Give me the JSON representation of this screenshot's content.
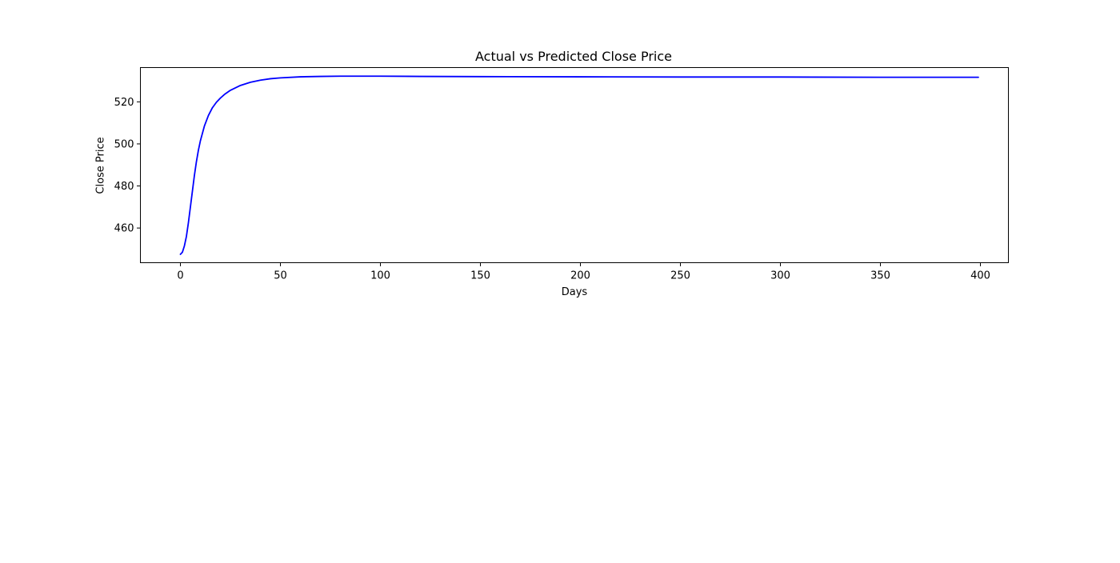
{
  "chart_data": {
    "type": "line",
    "title": "Actual vs Predicted Close Price",
    "xlabel": "Days",
    "ylabel": "Close Price",
    "xlim": [
      -20,
      414
    ],
    "ylim": [
      443.5,
      536.3
    ],
    "xticks": [
      0,
      50,
      100,
      150,
      200,
      250,
      300,
      350,
      400
    ],
    "yticks": [
      460,
      480,
      500,
      520
    ],
    "grid": false,
    "legend": "none",
    "colors": {
      "line": "#0000ff",
      "axes": "#000000",
      "background": "#ffffff"
    },
    "series": [
      {
        "x": [
          0,
          1,
          2,
          3,
          4,
          5,
          6,
          7,
          8,
          9,
          10,
          12,
          14,
          16,
          18,
          20,
          22,
          25,
          30,
          35,
          40,
          45,
          50,
          60,
          70,
          80,
          90,
          100,
          120,
          150,
          200,
          250,
          300,
          350,
          399
        ],
        "y": [
          447.5,
          448.5,
          451.5,
          456.0,
          462.5,
          470.0,
          477.5,
          485.0,
          491.5,
          497.0,
          501.5,
          508.5,
          513.5,
          517.2,
          519.8,
          521.8,
          523.5,
          525.5,
          527.8,
          529.3,
          530.3,
          531.0,
          531.4,
          531.9,
          532.1,
          532.2,
          532.2,
          532.2,
          532.1,
          532.0,
          531.9,
          531.8,
          531.8,
          531.7,
          531.7
        ]
      }
    ]
  }
}
